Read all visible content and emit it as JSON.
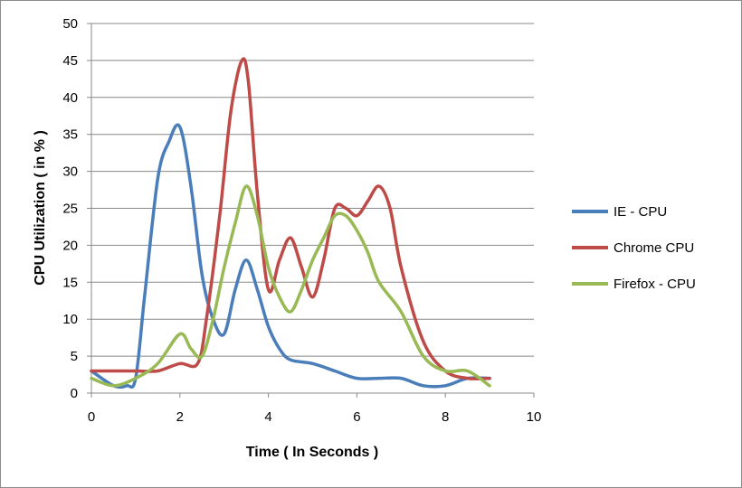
{
  "chart_data": {
    "type": "line",
    "title": "",
    "xlabel": "Time ( In Seconds )",
    "ylabel": "CPU Utilization  ( in % )",
    "xlim": [
      0,
      10
    ],
    "ylim": [
      0,
      50
    ],
    "xticks": [
      0,
      2,
      4,
      6,
      8,
      10
    ],
    "yticks": [
      0,
      5,
      10,
      15,
      20,
      25,
      30,
      35,
      40,
      45,
      50
    ],
    "grid": "horizontal",
    "legend_position": "right",
    "series": [
      {
        "name": "IE - CPU",
        "color": "#4a7ebb",
        "x": [
          0,
          0.5,
          0.8,
          1.0,
          1.2,
          1.5,
          1.75,
          2.0,
          2.25,
          2.5,
          2.75,
          3.0,
          3.25,
          3.5,
          3.75,
          4.0,
          4.25,
          4.5,
          5.0,
          5.5,
          6.0,
          6.5,
          7.0,
          7.5,
          8.0,
          8.5,
          9.0
        ],
        "y": [
          3,
          1,
          1,
          2,
          13,
          29,
          34,
          36,
          28,
          16,
          10,
          8,
          14,
          18,
          14,
          9,
          6,
          4.5,
          4,
          3,
          2,
          2,
          2,
          1,
          1,
          2,
          2
        ]
      },
      {
        "name": "Chrome   CPU",
        "color": "#be4b48",
        "x": [
          0,
          1.0,
          1.5,
          2.0,
          2.4,
          2.6,
          2.9,
          3.15,
          3.4,
          3.55,
          3.75,
          4.0,
          4.25,
          4.5,
          4.75,
          5.0,
          5.25,
          5.5,
          5.75,
          6.0,
          6.25,
          6.5,
          6.75,
          7.0,
          7.5,
          8.0,
          8.5,
          9.0
        ],
        "y": [
          3,
          3,
          3,
          4,
          4,
          10,
          24,
          38,
          45,
          42,
          27,
          14,
          18,
          21,
          17,
          13,
          18,
          25,
          25,
          24,
          26,
          28,
          25,
          17,
          7,
          3,
          2,
          2
        ]
      },
      {
        "name": "Firefox - CPU",
        "color": "#98b954",
        "x": [
          0,
          0.5,
          1.0,
          1.5,
          2.0,
          2.25,
          2.5,
          2.75,
          3.0,
          3.25,
          3.5,
          3.75,
          4.0,
          4.25,
          4.5,
          4.75,
          5.0,
          5.25,
          5.5,
          5.75,
          6.0,
          6.25,
          6.5,
          7.0,
          7.5,
          8.0,
          8.5,
          9.0
        ],
        "y": [
          2,
          1,
          2,
          4,
          8,
          6,
          5,
          10,
          17,
          23,
          28,
          24,
          17,
          13,
          11,
          14,
          18,
          21,
          24,
          24,
          22,
          19,
          15,
          11,
          5,
          3,
          3,
          1
        ]
      }
    ]
  }
}
